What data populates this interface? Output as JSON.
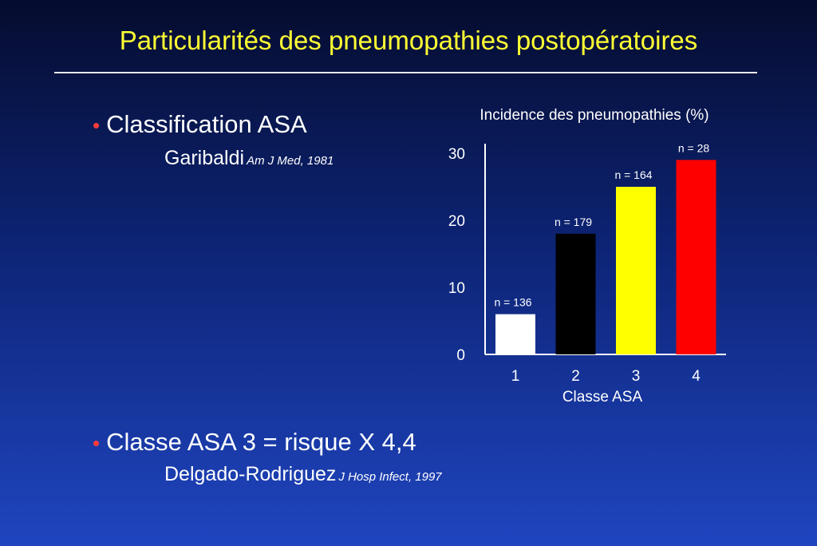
{
  "slide": {
    "title": "Particularités des pneumopathies postopératoires",
    "bullets": [
      {
        "dot": "•",
        "text": "Classification ASA",
        "ref_author": "Garibaldi",
        "ref_citation": "Am J Med, 1981"
      },
      {
        "dot": "•",
        "text": "Classe ASA  3 = risque X 4,4",
        "ref_author": "Delgado-Rodriguez",
        "ref_citation": "J Hosp Infect, 1997"
      }
    ]
  },
  "colors": {
    "title": "#ffff33",
    "bullet": "#ff3b3b",
    "background_top": "#050c2e",
    "background_bottom": "#1f45c0"
  },
  "chart_data": {
    "type": "bar",
    "title": "Incidence des pneumopathies (%)",
    "xlabel": "Classe ASA",
    "ylabel": "",
    "categories": [
      "1",
      "2",
      "3",
      "4"
    ],
    "values": [
      6,
      18,
      25,
      29
    ],
    "labels": [
      "n = 136",
      "n = 179",
      "n = 164",
      "n = 28"
    ],
    "bar_colors": [
      "#ffffff",
      "#000000",
      "#ffff00",
      "#ff0000"
    ],
    "yticks": [
      0,
      10,
      20,
      30
    ],
    "ylim": [
      0,
      31
    ],
    "grid": false
  }
}
